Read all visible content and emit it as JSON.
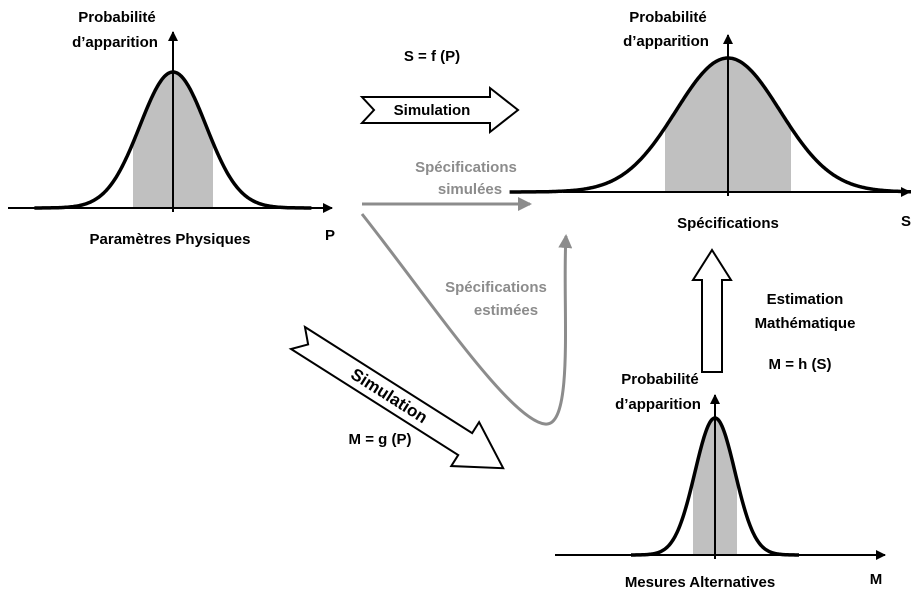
{
  "plots": [
    {
      "y_label_line1": "Probabilité",
      "y_label_line2": "d’apparition",
      "x_label": "Paramètres Physiques",
      "axis": "P"
    },
    {
      "y_label_line1": "Probabilité",
      "y_label_line2": "d’apparition",
      "x_label": "Spécifications",
      "axis": "S"
    },
    {
      "y_label_line1": "Probabilité",
      "y_label_line2": "d’apparition",
      "x_label": "Mesures Alternatives",
      "axis": "M"
    }
  ],
  "arrows": {
    "top_formula": "S = f (P)",
    "top_label": "Simulation",
    "simulated_line1": "Spécifications",
    "simulated_line2": "simulées",
    "estimated_line1": "Spécifications",
    "estimated_line2": "estimées",
    "diagonal_label": "Simulation",
    "diagonal_formula": "M = g (P)",
    "vertical_line1": "Estimation",
    "vertical_line2": "Mathématique",
    "vertical_formula": "M = h (S)"
  }
}
